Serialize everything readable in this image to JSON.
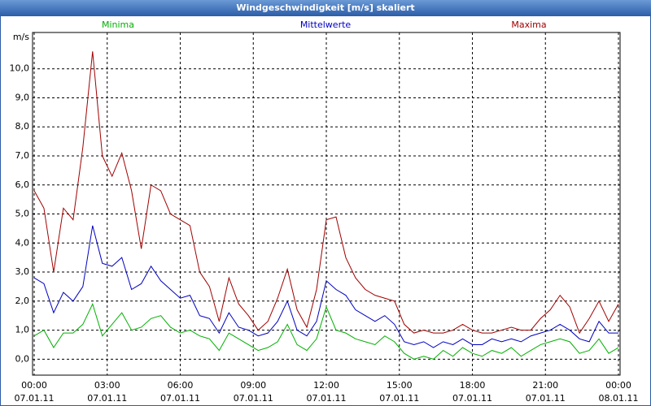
{
  "chart_data": {
    "type": "line",
    "title": "Windgeschwindigkeit [m/s] skaliert",
    "y_label": "m/s",
    "x": [
      0,
      0.4,
      0.8,
      1.2,
      1.6,
      2,
      2.4,
      2.8,
      3.2,
      3.6,
      4,
      4.4,
      4.8,
      5.2,
      5.6,
      6,
      6.4,
      6.8,
      7.2,
      7.6,
      8,
      8.4,
      8.8,
      9.2,
      9.6,
      10,
      10.4,
      10.8,
      11.2,
      11.6,
      12,
      12.4,
      12.8,
      13.2,
      13.6,
      14,
      14.4,
      14.8,
      15.2,
      15.6,
      16,
      16.4,
      16.8,
      17.2,
      17.6,
      18,
      18.4,
      18.8,
      19.2,
      19.6,
      20,
      20.4,
      20.8,
      21.2,
      21.6,
      22,
      22.4,
      22.8,
      23.2,
      23.6,
      24
    ],
    "series": [
      {
        "name": "Minima",
        "color": "#00b000",
        "values": [
          0.8,
          1.0,
          0.4,
          0.9,
          0.9,
          1.2,
          1.9,
          0.8,
          1.2,
          1.6,
          1.0,
          1.1,
          1.4,
          1.5,
          1.1,
          0.9,
          1.0,
          0.8,
          0.7,
          0.3,
          0.9,
          0.7,
          0.5,
          0.3,
          0.4,
          0.6,
          1.2,
          0.5,
          0.3,
          0.7,
          1.8,
          1.0,
          0.9,
          0.7,
          0.6,
          0.5,
          0.8,
          0.6,
          0.2,
          0.0,
          0.1,
          0.0,
          0.3,
          0.1,
          0.4,
          0.2,
          0.1,
          0.3,
          0.2,
          0.4,
          0.1,
          0.3,
          0.5,
          0.6,
          0.7,
          0.6,
          0.2,
          0.3,
          0.7,
          0.2,
          0.4
        ]
      },
      {
        "name": "Mittelwerte",
        "color": "#0000c0",
        "values": [
          2.8,
          2.6,
          1.6,
          2.3,
          2.0,
          2.5,
          4.6,
          3.3,
          3.2,
          3.5,
          2.4,
          2.6,
          3.2,
          2.7,
          2.4,
          2.1,
          2.2,
          1.5,
          1.4,
          0.9,
          1.6,
          1.1,
          1.0,
          0.8,
          0.9,
          1.3,
          2.0,
          1.0,
          0.8,
          1.3,
          2.7,
          2.4,
          2.2,
          1.7,
          1.5,
          1.3,
          1.5,
          1.2,
          0.6,
          0.5,
          0.6,
          0.4,
          0.6,
          0.5,
          0.7,
          0.5,
          0.5,
          0.7,
          0.6,
          0.7,
          0.6,
          0.8,
          0.9,
          1.0,
          1.2,
          1.0,
          0.7,
          0.6,
          1.3,
          0.9,
          0.9
        ]
      },
      {
        "name": "Maxima",
        "color": "#a00000",
        "values": [
          5.8,
          5.2,
          3.0,
          5.2,
          4.8,
          7.3,
          10.6,
          7.0,
          6.3,
          7.1,
          5.8,
          3.8,
          6.0,
          5.8,
          5.0,
          4.8,
          4.6,
          3.0,
          2.5,
          1.3,
          2.8,
          1.9,
          1.5,
          1.0,
          1.3,
          2.1,
          3.1,
          1.7,
          1.1,
          2.4,
          4.8,
          4.9,
          3.5,
          2.8,
          2.4,
          2.2,
          2.1,
          2.0,
          1.2,
          0.9,
          1.0,
          0.9,
          0.9,
          1.0,
          1.2,
          1.0,
          0.9,
          0.9,
          1.0,
          1.1,
          1.0,
          1.0,
          1.4,
          1.7,
          2.2,
          1.8,
          0.9,
          1.4,
          2.0,
          1.3,
          1.9
        ]
      }
    ],
    "xlim": [
      0,
      24
    ],
    "xticks": [
      {
        "value": 0,
        "label": [
          "00:00",
          "07.01.11"
        ]
      },
      {
        "value": 3,
        "label": [
          "03:00",
          "07.01.11"
        ]
      },
      {
        "value": 6,
        "label": [
          "06:00",
          "07.01.11"
        ]
      },
      {
        "value": 9,
        "label": [
          "09:00",
          "07.01.11"
        ]
      },
      {
        "value": 12,
        "label": [
          "12:00",
          "07.01.11"
        ]
      },
      {
        "value": 15,
        "label": [
          "15:00",
          "07.01.11"
        ]
      },
      {
        "value": 18,
        "label": [
          "18:00",
          "07.01.11"
        ]
      },
      {
        "value": 21,
        "label": [
          "21:00",
          "07.01.11"
        ]
      },
      {
        "value": 24,
        "label": [
          "00:00",
          "08.01.11"
        ]
      }
    ],
    "ylim": [
      -0.55,
      11.25
    ],
    "yticks": [
      {
        "value": 0,
        "label": "0,0"
      },
      {
        "value": 1,
        "label": "1,0"
      },
      {
        "value": 2,
        "label": "2,0"
      },
      {
        "value": 3,
        "label": "3,0"
      },
      {
        "value": 4,
        "label": "4,0"
      },
      {
        "value": 5,
        "label": "5,0"
      },
      {
        "value": 6,
        "label": "6,0"
      },
      {
        "value": 7,
        "label": "7,0"
      },
      {
        "value": 8,
        "label": "8,0"
      },
      {
        "value": 9,
        "label": "9,0"
      },
      {
        "value": 10,
        "label": "10,0"
      }
    ],
    "grid": true
  }
}
